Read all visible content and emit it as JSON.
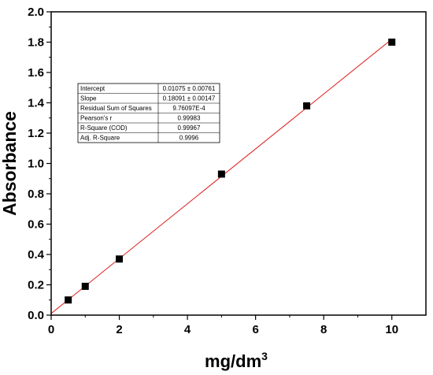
{
  "chart_data": {
    "type": "scatter",
    "xlabel": "mg/dm",
    "xlabel_superscript": "3",
    "ylabel": "Absorbance",
    "xlim": [
      0,
      11
    ],
    "ylim": [
      0,
      2.0
    ],
    "xticks": [
      "0",
      "2",
      "4",
      "6",
      "8",
      "10"
    ],
    "yticks": [
      "0.0",
      "0.2",
      "0.4",
      "0.6",
      "0.8",
      "1.0",
      "1.2",
      "1.4",
      "1.6",
      "1.8",
      "2.0"
    ],
    "grid": false,
    "series": [
      {
        "x": [
          0.5,
          1,
          2,
          5,
          7.5,
          10
        ],
        "y": [
          0.1,
          0.19,
          0.37,
          0.93,
          1.38,
          1.8
        ],
        "marker": "square",
        "color": "#000000"
      }
    ],
    "fit": {
      "intercept": 0.01075,
      "slope": 0.18091,
      "x_range": [
        0,
        10
      ],
      "color": "#e02020"
    },
    "stats_table": [
      {
        "label": "Intercept",
        "value": "0.01075 ± 0.00761"
      },
      {
        "label": "Slope",
        "value": "0.18091 ± 0.00147"
      },
      {
        "label": "Residual Sum of Squares",
        "value": "9.76097E-4"
      },
      {
        "label": "Pearson's r",
        "value": "0.99983"
      },
      {
        "label": "R-Square (COD)",
        "value": "0.99967"
      },
      {
        "label": "Adj. R-Square",
        "value": "0.9996"
      }
    ]
  }
}
